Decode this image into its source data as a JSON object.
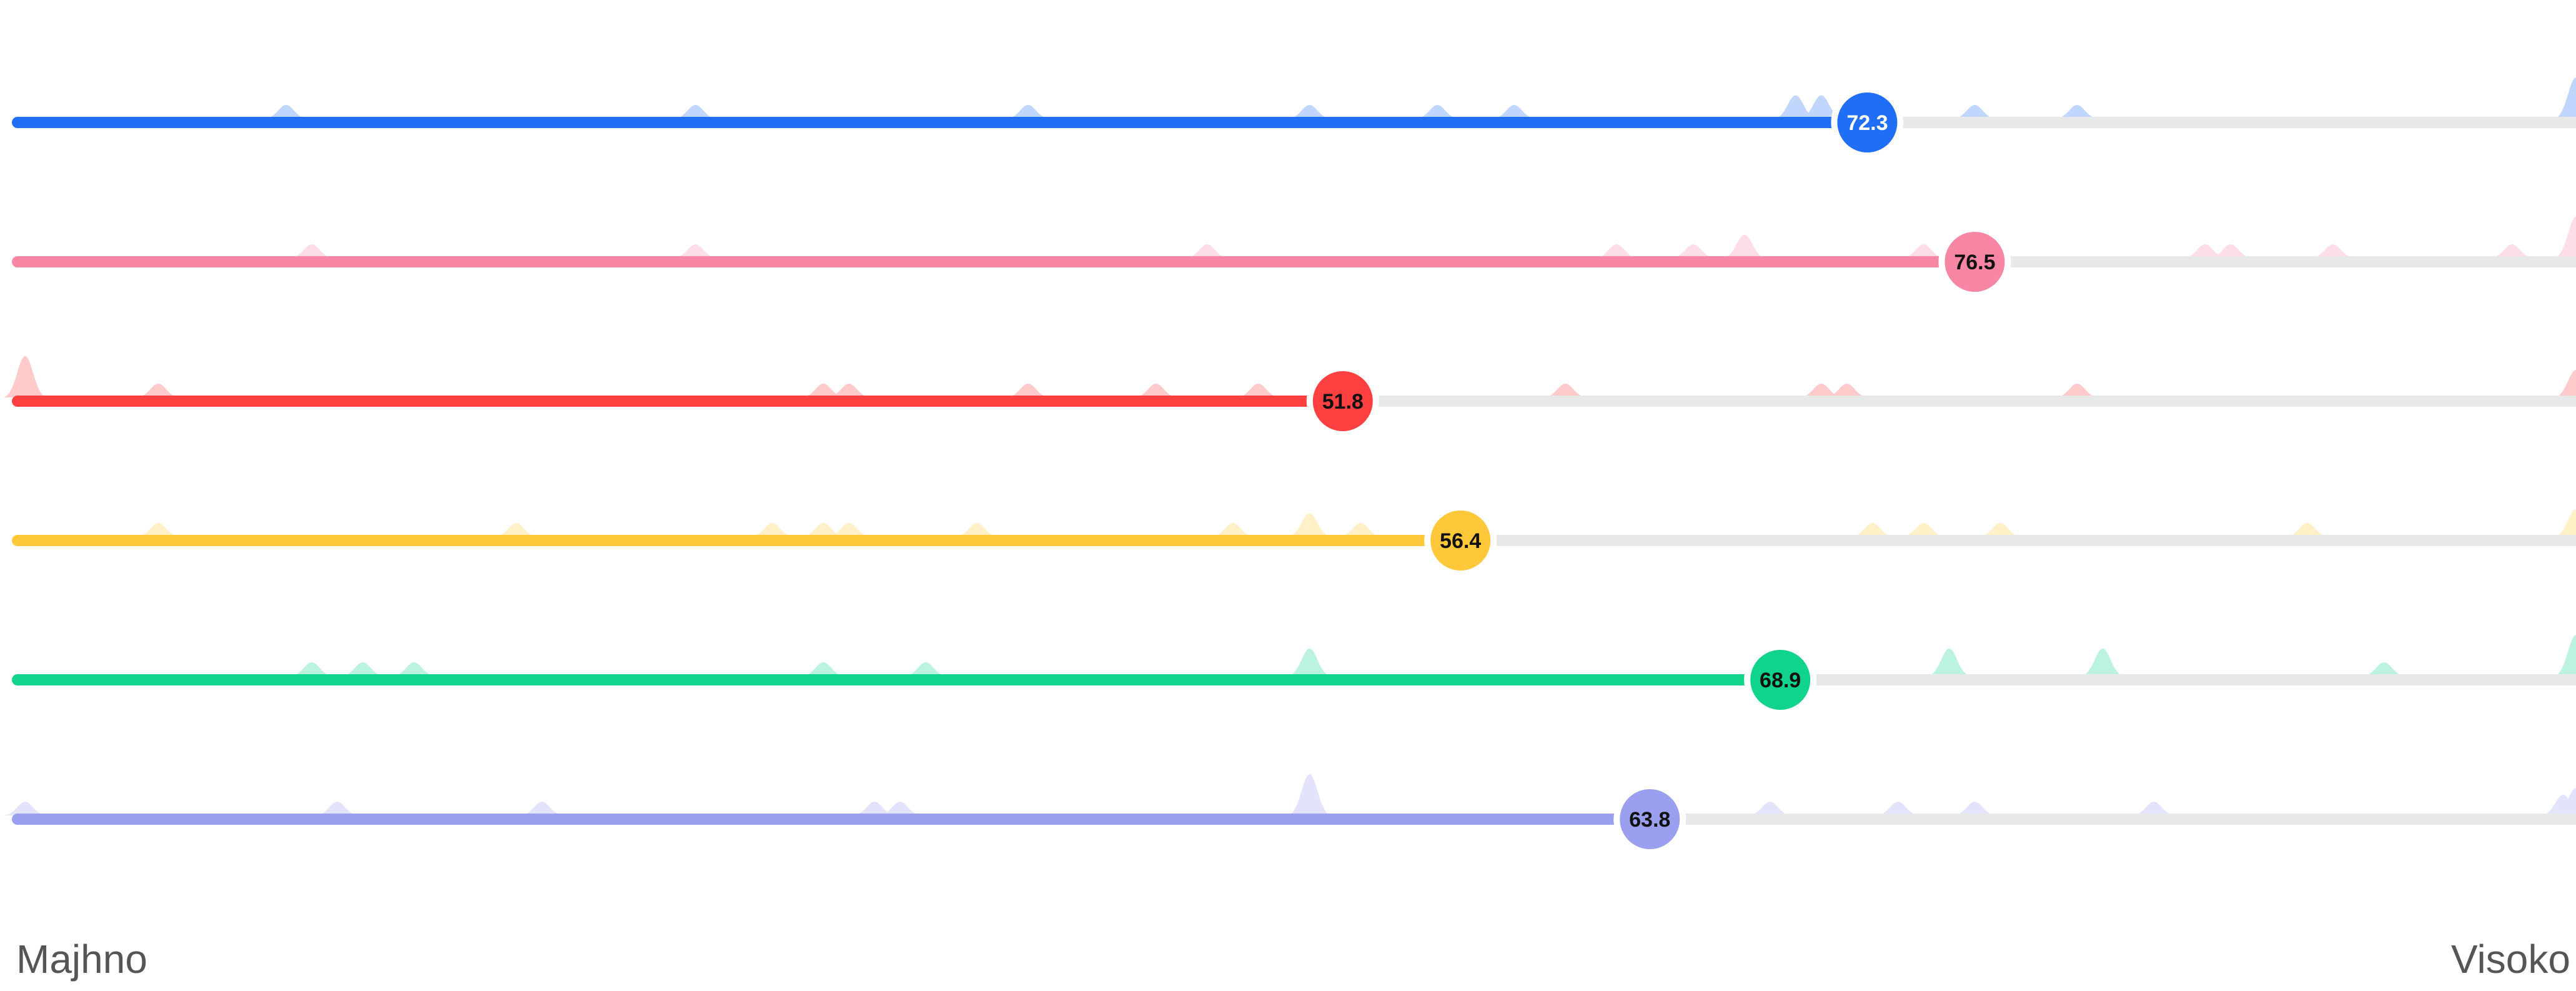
{
  "chart_data": {
    "type": "slider-ridgeline",
    "x_range": [
      0,
      100
    ],
    "axis": {
      "min_label": "Majhno",
      "max_label": "Visoko"
    },
    "series": [
      {
        "value": 72.3,
        "label": "72.3",
        "color": "#1f6ef5",
        "label_color": "#ffffff",
        "peaks": [
          [
            10.5,
            1
          ],
          [
            26.5,
            1
          ],
          [
            39.5,
            1
          ],
          [
            50.5,
            1
          ],
          [
            55.5,
            1
          ],
          [
            58.5,
            1
          ],
          [
            69.5,
            1.7
          ],
          [
            70.5,
            1.7
          ],
          [
            71.5,
            1.7
          ],
          [
            76.5,
            1
          ],
          [
            80.5,
            1
          ],
          [
            100,
            3
          ]
        ]
      },
      {
        "value": 76.5,
        "label": "76.5",
        "color": "#f786a5",
        "label_color": "#111111",
        "peaks": [
          [
            11.5,
            1
          ],
          [
            26.5,
            1
          ],
          [
            46.5,
            1
          ],
          [
            62.5,
            1
          ],
          [
            65.5,
            1
          ],
          [
            67.5,
            1.7
          ],
          [
            74.5,
            1
          ],
          [
            85.5,
            1
          ],
          [
            86.5,
            1
          ],
          [
            90.5,
            1
          ],
          [
            97.5,
            1
          ],
          [
            100,
            3
          ]
        ]
      },
      {
        "value": 51.8,
        "label": "51.8",
        "color": "#ff4040",
        "label_color": "#111111",
        "peaks": [
          [
            0.3,
            3
          ],
          [
            5.5,
            1
          ],
          [
            31.5,
            1
          ],
          [
            32.5,
            1
          ],
          [
            39.5,
            1
          ],
          [
            44.5,
            1
          ],
          [
            48.5,
            1
          ],
          [
            60.5,
            1
          ],
          [
            70.5,
            1
          ],
          [
            71.5,
            1
          ],
          [
            80.5,
            1
          ],
          [
            100,
            2
          ]
        ]
      },
      {
        "value": 56.4,
        "label": "56.4",
        "color": "#ffc83a",
        "label_color": "#111111",
        "peaks": [
          [
            5.5,
            1
          ],
          [
            19.5,
            1
          ],
          [
            29.5,
            1
          ],
          [
            31.5,
            1
          ],
          [
            32.5,
            1
          ],
          [
            37.5,
            1
          ],
          [
            47.5,
            1
          ],
          [
            50.5,
            1.7
          ],
          [
            52.5,
            1
          ],
          [
            72.5,
            1
          ],
          [
            74.5,
            1
          ],
          [
            77.5,
            1
          ],
          [
            89.5,
            1
          ],
          [
            100,
            2
          ]
        ]
      },
      {
        "value": 68.9,
        "label": "68.9",
        "color": "#10d38c",
        "label_color": "#111111",
        "peaks": [
          [
            11.5,
            1
          ],
          [
            13.5,
            1
          ],
          [
            15.5,
            1
          ],
          [
            31.5,
            1
          ],
          [
            35.5,
            1
          ],
          [
            50.5,
            2
          ],
          [
            75.5,
            2
          ],
          [
            81.5,
            2
          ],
          [
            92.5,
            1
          ],
          [
            100,
            3
          ]
        ]
      },
      {
        "value": 63.8,
        "label": "63.8",
        "color": "#9aa0ef",
        "label_color": "#111111",
        "peaks": [
          [
            0.3,
            1
          ],
          [
            12.5,
            1
          ],
          [
            20.5,
            1
          ],
          [
            33.5,
            1
          ],
          [
            34.5,
            1
          ],
          [
            50.5,
            3
          ],
          [
            68.5,
            1
          ],
          [
            73.5,
            1
          ],
          [
            76.5,
            1
          ],
          [
            83.5,
            1
          ],
          [
            99.5,
            1.5
          ],
          [
            100,
            2
          ]
        ]
      }
    ]
  }
}
